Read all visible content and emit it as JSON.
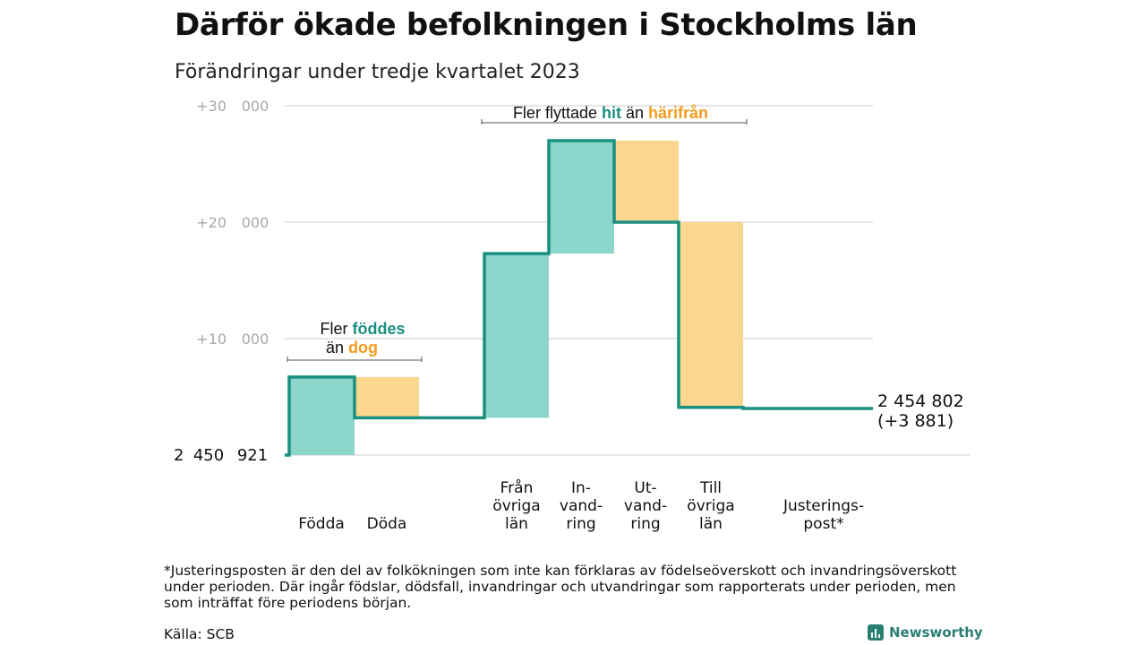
{
  "chart_data": {
    "type": "waterfall",
    "title": "Därför ökade befolkningen i Stockholms län",
    "subtitle": "Förändringar under tredje kvartalet 2023",
    "start_value_label": "2 450 921",
    "end_value_label": "2 454 802",
    "end_change_label": "(+3 881)",
    "y_ticks": [
      "+10 000",
      "+20 000",
      "+30 000"
    ],
    "y_tick_values": [
      10000,
      20000,
      30000
    ],
    "ylim": [
      0,
      30000
    ],
    "steps": [
      {
        "label_lines": [
          "Födda"
        ],
        "delta": 6700,
        "kind": "positive"
      },
      {
        "label_lines": [
          "Döda"
        ],
        "delta": -3500,
        "kind": "negative"
      },
      {
        "label_lines": [
          "Från",
          "övriga",
          "län"
        ],
        "delta": 14100,
        "kind": "positive"
      },
      {
        "label_lines": [
          "In-",
          "vand-",
          "ring"
        ],
        "delta": 9700,
        "kind": "positive"
      },
      {
        "label_lines": [
          "Ut-",
          "vand-",
          "ring"
        ],
        "delta": -7000,
        "kind": "negative"
      },
      {
        "label_lines": [
          "Till",
          "övriga",
          "län"
        ],
        "delta": -15900,
        "kind": "negative"
      },
      {
        "label_lines": [
          "Justerings-",
          "post*"
        ],
        "delta": -100,
        "kind": "neutral"
      }
    ],
    "annotations": [
      {
        "line1_pre": "Fler ",
        "line1_word": "föddes",
        "line2_pre": "än ",
        "line2_word": "dog"
      },
      {
        "pre": "Fler flyttade ",
        "word1": "hit",
        "mid": " än ",
        "word2": "härifrån"
      }
    ],
    "colors": {
      "positive": "#8cd5cb",
      "negative": "#fbd68e",
      "line": "#1a9080",
      "teal_text": "#1a9080",
      "orange_text": "#f39c1e",
      "grid": "#dddddd",
      "tick_text": "#a8a8a8"
    }
  },
  "footnote": "*Justeringsposten är den del av folkökningen som inte kan förklaras av födelseöverskott och invandringsöverskott under perioden. Där ingår födslar, dödsfall, invandringar och utvandringar som rapporterats under perioden, men som inträffat före periodens början.",
  "source": "Källa: SCB",
  "logo_text": "Newsworthy"
}
